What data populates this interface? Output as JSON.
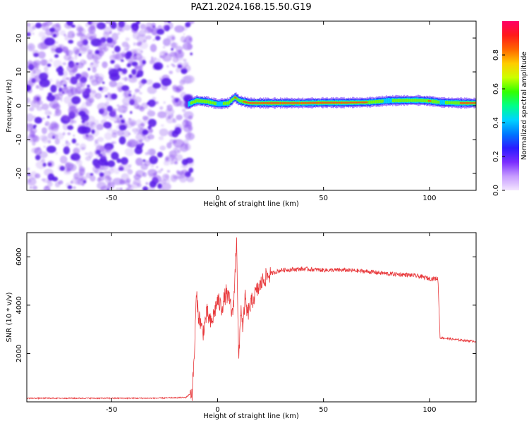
{
  "title": "PAZ1.2024.168.15.50.G19",
  "colors": {
    "snr_line": "#e8373a",
    "speckle": "#8a4df0",
    "speckle_dark": "#5a1ee8",
    "colorbar_stops": [
      "#f4e6ff",
      "#c79cff",
      "#7b2dff",
      "#2a1cff",
      "#0077ff",
      "#00d4ff",
      "#00ff88",
      "#33ff00",
      "#ccff00",
      "#ffcc00",
      "#ff6600",
      "#ff1a1a",
      "#ff0066"
    ]
  },
  "chart_data": [
    {
      "type": "heatmap",
      "title": "PAZ1.2024.168.15.50.G19",
      "xlabel": "Height of straight line (km)",
      "ylabel": "Frequency (Hz)",
      "xlim": [
        -90,
        122
      ],
      "ylim": [
        -25,
        25
      ],
      "xticks": [
        -50,
        0,
        50,
        100
      ],
      "yticks": [
        20,
        10,
        0,
        -10,
        -20
      ],
      "xtick_labels": [
        "-50",
        "0",
        "50",
        "100"
      ],
      "ytick_labels": [
        "20",
        "10",
        "0",
        "-10",
        "-20"
      ],
      "noise_region_x": [
        -90,
        -15
      ],
      "signal_track": {
        "x": [
          -14,
          -10,
          -5,
          0,
          5,
          8,
          10,
          15,
          20,
          30,
          40,
          50,
          60,
          70,
          75,
          80,
          90,
          95,
          100,
          105,
          110,
          115,
          122
        ],
        "freq_hz": [
          0.5,
          1.5,
          1.2,
          0.5,
          0.8,
          2.5,
          1.5,
          0.8,
          0.8,
          0.8,
          0.8,
          0.9,
          0.9,
          1.0,
          1.2,
          1.5,
          1.6,
          1.6,
          1.4,
          1.0,
          0.9,
          0.8,
          0.8
        ],
        "amplitude": [
          0.5,
          0.7,
          0.7,
          0.5,
          0.6,
          0.8,
          0.7,
          0.9,
          0.9,
          0.9,
          0.9,
          0.9,
          0.9,
          0.8,
          0.6,
          0.5,
          0.7,
          0.6,
          0.8,
          0.5,
          0.6,
          0.8,
          0.8
        ]
      },
      "colorbar": {
        "label": "Normalized spectral amplitude",
        "range": [
          0,
          1
        ],
        "ticks": [
          0.0,
          0.2,
          0.4,
          0.6,
          0.8
        ],
        "tick_labels": [
          "0.0",
          "0.2",
          "0.4",
          "0.6",
          "0.8"
        ]
      }
    },
    {
      "type": "line",
      "xlabel": "Height of straight line (km)",
      "ylabel": "SNR (10 * v/v)",
      "xlim": [
        -90,
        122
      ],
      "ylim": [
        0,
        7000
      ],
      "xticks": [
        -50,
        0,
        50,
        100
      ],
      "yticks": [
        2000,
        4000,
        6000
      ],
      "xtick_labels": [
        "-50",
        "0",
        "50",
        "100"
      ],
      "ytick_labels": [
        "2000",
        "4000",
        "6000"
      ],
      "series": [
        {
          "x": [
            -90,
            -60,
            -30,
            -15,
            -12,
            -11,
            -10,
            -9,
            -8,
            -7,
            -5,
            -3,
            0,
            2,
            4,
            6,
            7,
            8,
            9,
            10,
            11,
            12,
            13,
            14,
            16,
            18,
            20,
            22,
            25,
            30,
            40,
            50,
            60,
            70,
            80,
            90,
            95,
            100,
            104,
            105,
            106,
            110,
            115,
            122
          ],
          "y": [
            150,
            150,
            150,
            180,
            400,
            1800,
            4400,
            3600,
            3300,
            2800,
            3700,
            3200,
            4200,
            3900,
            4500,
            4100,
            3500,
            4700,
            6900,
            1500,
            4000,
            3000,
            4300,
            3600,
            4100,
            4500,
            4800,
            5100,
            5300,
            5450,
            5500,
            5450,
            5450,
            5400,
            5300,
            5250,
            5200,
            5100,
            5100,
            2650,
            2650,
            2600,
            2550,
            2500
          ]
        }
      ]
    }
  ]
}
